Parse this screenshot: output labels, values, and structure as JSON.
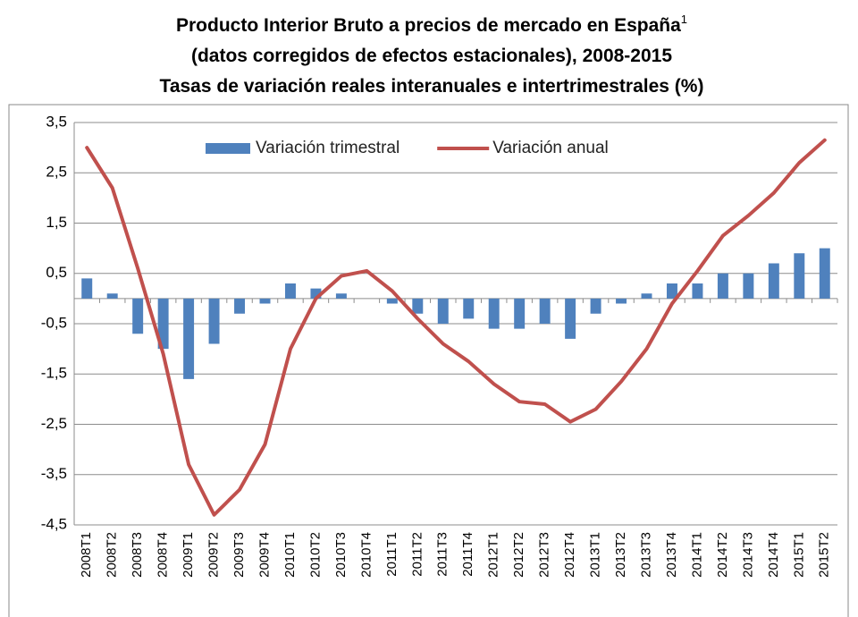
{
  "chart_data": {
    "type": "bar+line",
    "title": "Producto Interior Bruto a precios de mercado en España",
    "title_note": "1",
    "subtitle": [
      "(datos corregidos de efectos estacionales), 2008-2015",
      "Tasas de variación reales interanuales e intertrimestrales (%)"
    ],
    "categories": [
      "2008T1",
      "2008T2",
      "2008T3",
      "2008T4",
      "2009T1",
      "2009T2",
      "2009T3",
      "2009T4",
      "2010T1",
      "2010T2",
      "2010T3",
      "2010T4",
      "2011T1",
      "2011T2",
      "2011T3",
      "2011T4",
      "2012T1",
      "2012T2",
      "2012T3",
      "2012T4",
      "2013T1",
      "2013T2",
      "2013T3",
      "2013T4",
      "2014T1",
      "2014T2",
      "2014T3",
      "2014T4",
      "2015T1",
      "2015T2"
    ],
    "series": [
      {
        "name": "Variación trimestral",
        "type": "bar",
        "color": "#4f81bd",
        "values": [
          0.4,
          0.1,
          -0.7,
          -1.0,
          -1.6,
          -0.9,
          -0.3,
          -0.1,
          0.3,
          0.2,
          0.1,
          0,
          -0.1,
          -0.3,
          -0.5,
          -0.4,
          -0.6,
          -0.6,
          -0.5,
          -0.8,
          -0.3,
          -0.1,
          0.1,
          0.3,
          0.3,
          0.5,
          0.5,
          0.7,
          0.9,
          1.0
        ]
      },
      {
        "name": "Variación anual",
        "type": "line",
        "color": "#c0504d",
        "values": [
          3.0,
          2.2,
          0.6,
          -1.1,
          -3.3,
          -4.3,
          -3.8,
          -2.9,
          -1.0,
          0.0,
          0.45,
          0.55,
          0.15,
          -0.4,
          -0.9,
          -1.25,
          -1.7,
          -2.05,
          -2.1,
          -2.45,
          -2.2,
          -1.65,
          -1.0,
          -0.1,
          0.55,
          1.25,
          1.65,
          2.1,
          2.7,
          3.15
        ]
      }
    ],
    "ylim": [
      -4.5,
      3.5
    ],
    "yticks": [
      {
        "value": 3.5,
        "label": "3,5"
      },
      {
        "value": 2.5,
        "label": "2,5"
      },
      {
        "value": 1.5,
        "label": "1,5"
      },
      {
        "value": 0.5,
        "label": "0,5"
      },
      {
        "value": -0.5,
        "label": "-0,5"
      },
      {
        "value": -1.5,
        "label": "-1,5"
      },
      {
        "value": -2.5,
        "label": "-2,5"
      },
      {
        "value": -3.5,
        "label": "-3,5"
      },
      {
        "value": -4.5,
        "label": "-4,5"
      }
    ],
    "grid": true,
    "legend": "top"
  }
}
